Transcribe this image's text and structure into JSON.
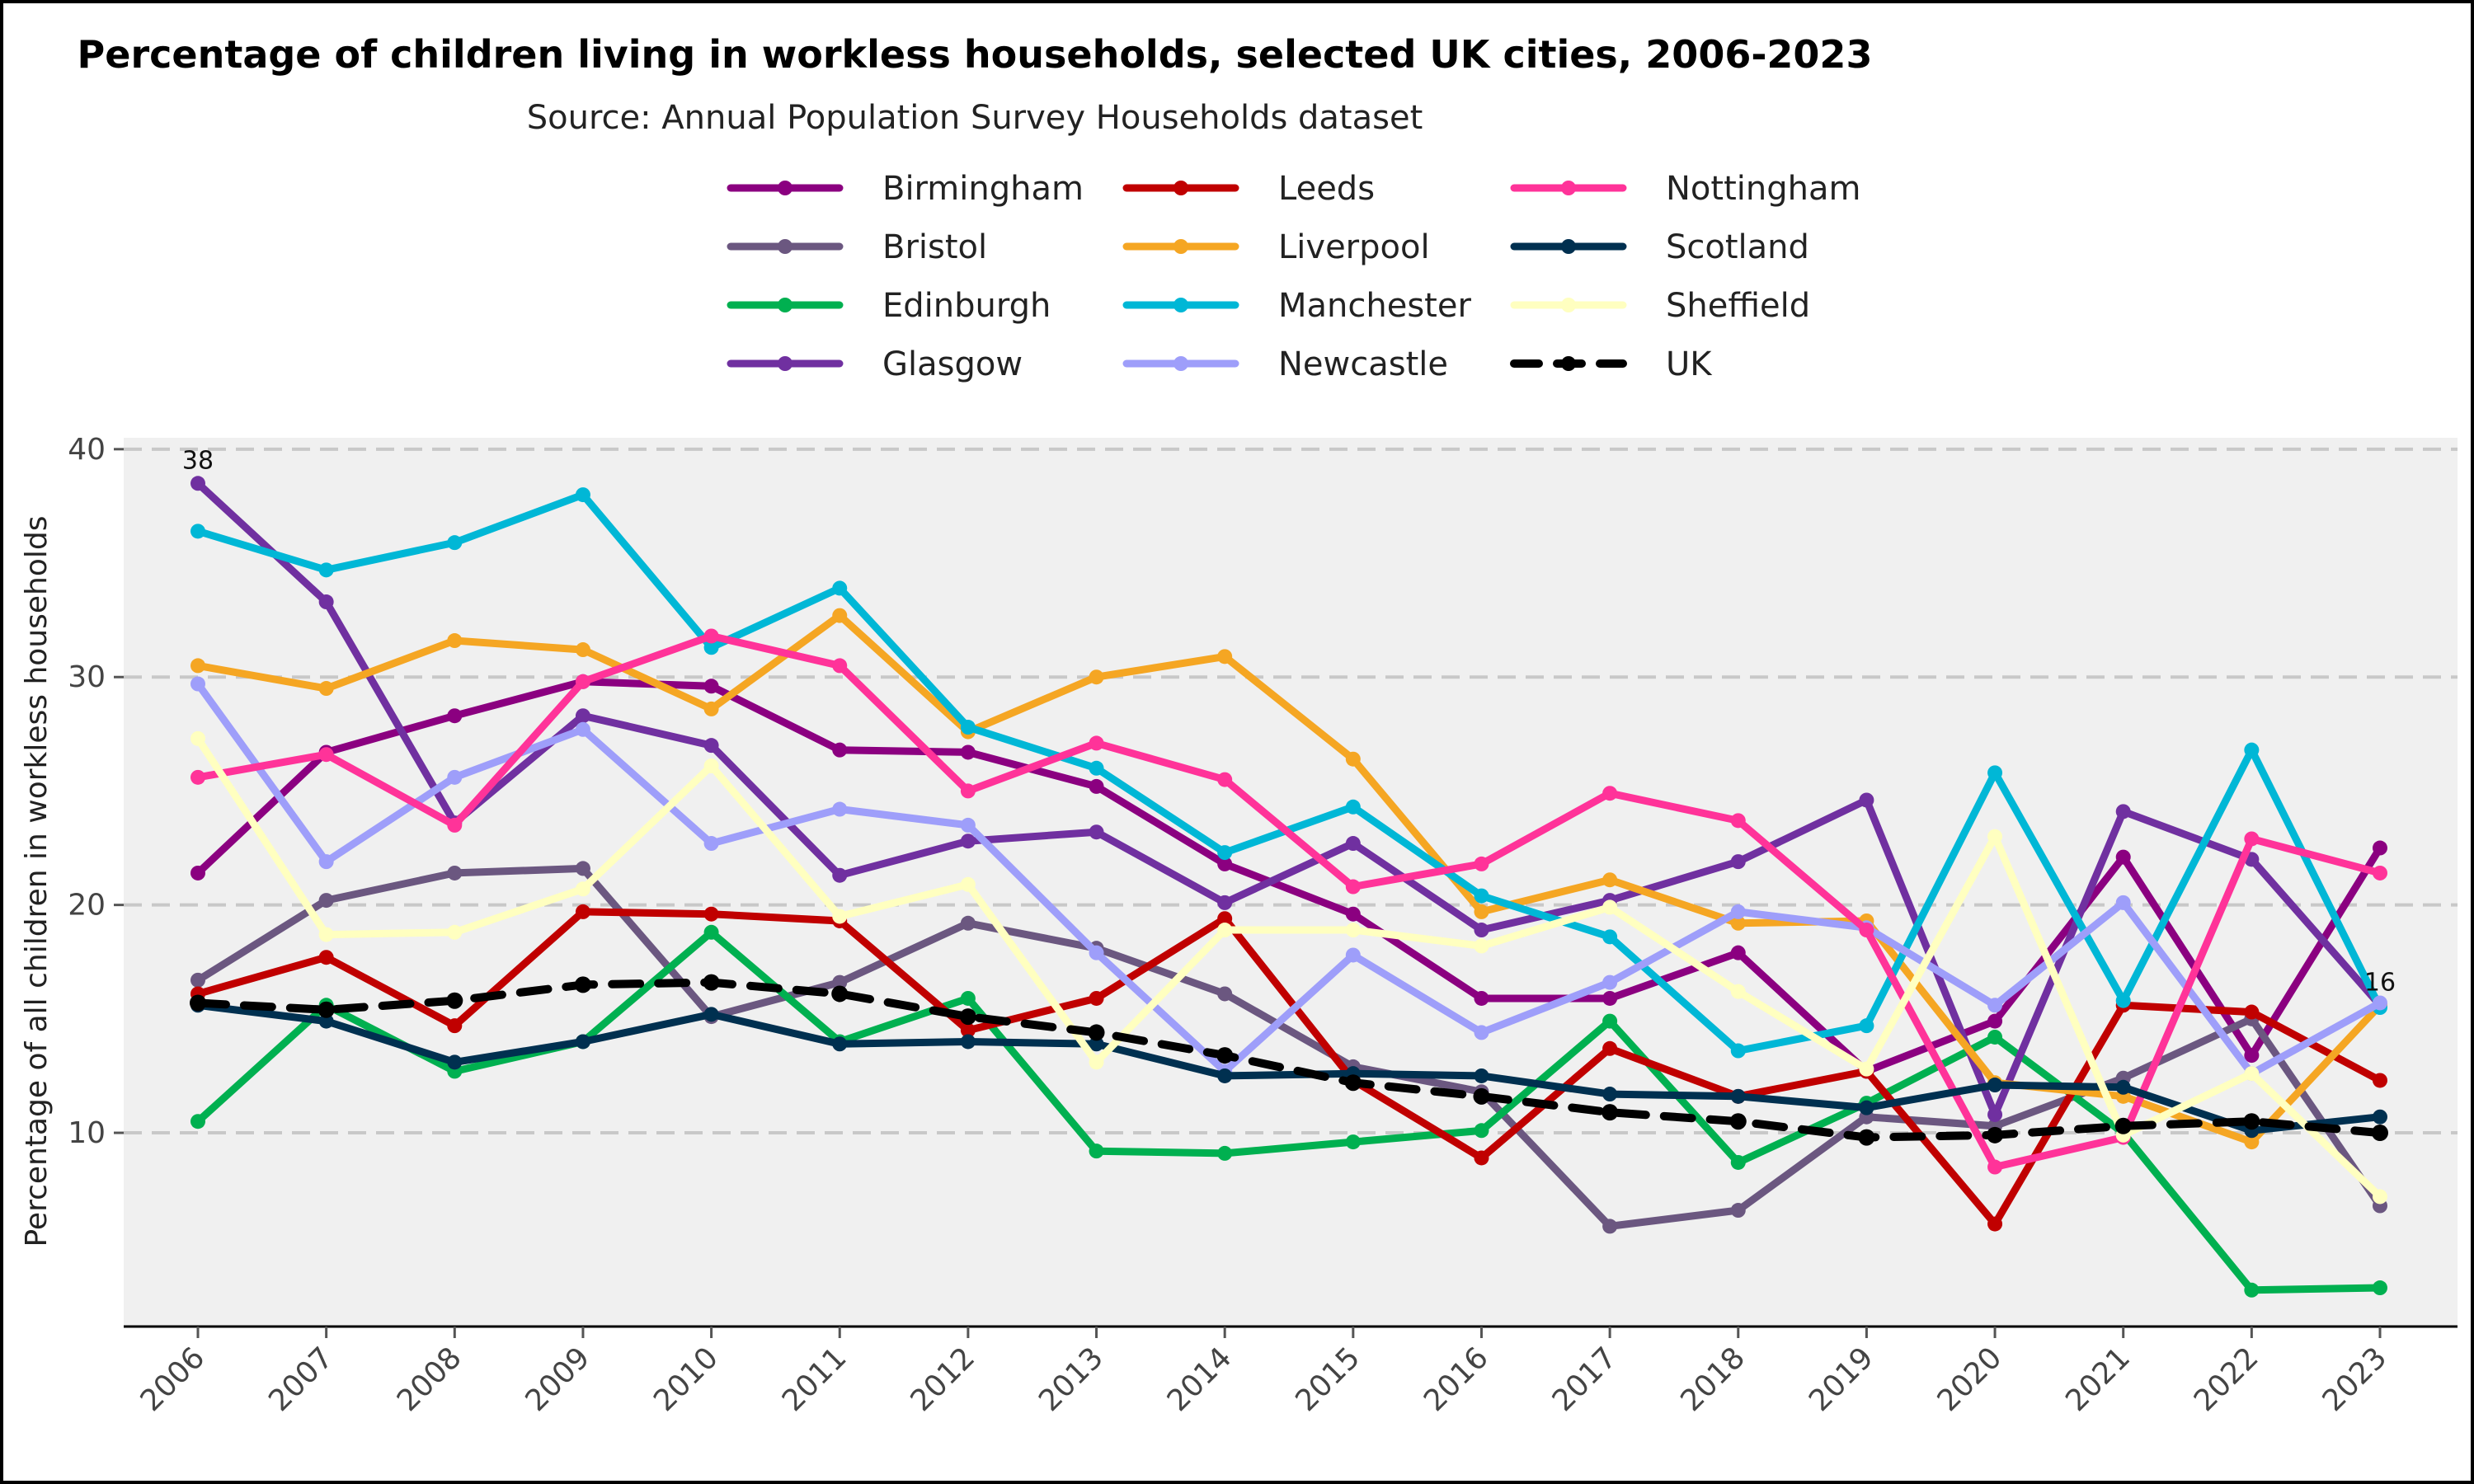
{
  "chart_data": {
    "type": "line",
    "title": "Percentage of children living in workless households, selected UK cities, 2006-2023",
    "subtitle": "Source: Annual Population Survey Households dataset",
    "xlabel": "",
    "ylabel": "Percentage of all children in workless households",
    "x": [
      "2006",
      "2007",
      "2008",
      "2009",
      "2010",
      "2011",
      "2012",
      "2013",
      "2014",
      "2015",
      "2016",
      "2017",
      "2018",
      "2019",
      "2020",
      "2021",
      "2022",
      "2023"
    ],
    "ylim": [
      1.5,
      40.5
    ],
    "yticks": [
      "10",
      "20",
      "30",
      "40"
    ],
    "grid": "horizontal dashed",
    "legend": "top-center, 3 columns",
    "series": [
      {
        "name": "Birmingham",
        "color": "#8B0080",
        "dashed": false,
        "values": [
          21.4,
          26.7,
          28.3,
          29.8,
          29.6,
          26.8,
          26.7,
          25.2,
          21.8,
          19.6,
          15.9,
          15.9,
          17.9,
          12.7,
          14.9,
          22.1,
          13.4,
          22.5
        ]
      },
      {
        "name": "Bristol",
        "color": "#6B5780",
        "dashed": false,
        "values": [
          16.7,
          20.2,
          21.4,
          21.6,
          15.1,
          16.6,
          19.2,
          18.1,
          16.1,
          12.9,
          11.8,
          5.9,
          6.6,
          10.7,
          10.3,
          12.4,
          15.0,
          6.8
        ]
      },
      {
        "name": "Edinburgh",
        "color": "#00B050",
        "dashed": false,
        "values": [
          10.5,
          15.6,
          12.7,
          14.0,
          18.8,
          14.0,
          15.9,
          9.2,
          9.1,
          9.6,
          10.1,
          14.9,
          8.7,
          11.3,
          14.2,
          10.0,
          3.1,
          3.2
        ]
      },
      {
        "name": "Glasgow",
        "color": "#7030A0",
        "dashed": false,
        "values": [
          38.5,
          33.3,
          23.6,
          28.3,
          27.0,
          21.3,
          22.8,
          23.2,
          20.1,
          22.7,
          18.9,
          20.2,
          21.9,
          24.6,
          10.8,
          24.1,
          22.0,
          15.6
        ]
      },
      {
        "name": "Leeds",
        "color": "#C00000",
        "dashed": false,
        "values": [
          16.1,
          17.7,
          14.7,
          19.7,
          19.6,
          19.3,
          14.5,
          15.9,
          19.4,
          12.3,
          8.9,
          13.7,
          11.6,
          12.7,
          6.0,
          15.6,
          15.3,
          12.3
        ]
      },
      {
        "name": "Liverpool",
        "color": "#F5A623",
        "dashed": false,
        "values": [
          30.5,
          29.5,
          31.6,
          31.2,
          28.6,
          32.7,
          27.6,
          30.0,
          30.9,
          26.4,
          19.7,
          21.1,
          19.2,
          19.3,
          12.2,
          11.6,
          9.6,
          15.6
        ]
      },
      {
        "name": "Manchester",
        "color": "#00B7D6",
        "dashed": false,
        "values": [
          36.4,
          34.7,
          35.9,
          38.0,
          31.3,
          33.9,
          27.8,
          26.0,
          22.3,
          24.3,
          20.4,
          18.6,
          13.6,
          14.7,
          25.8,
          15.8,
          26.8,
          15.5
        ]
      },
      {
        "name": "Newcastle",
        "color": "#9E9EFA",
        "dashed": false,
        "values": [
          29.7,
          21.9,
          25.6,
          27.7,
          22.7,
          24.2,
          23.5,
          17.9,
          12.7,
          17.8,
          14.4,
          16.6,
          19.7,
          19.0,
          15.6,
          20.1,
          12.6,
          15.7
        ]
      },
      {
        "name": "Nottingham",
        "color": "#FF3399",
        "dashed": false,
        "values": [
          25.6,
          26.6,
          23.5,
          29.8,
          31.8,
          30.5,
          25.0,
          27.1,
          25.5,
          20.8,
          21.8,
          24.9,
          23.7,
          18.9,
          8.5,
          9.8,
          22.9,
          21.4
        ]
      },
      {
        "name": "Scotland",
        "color": "#003050",
        "dashed": false,
        "values": [
          15.6,
          14.9,
          13.1,
          14.0,
          15.2,
          13.9,
          14.0,
          13.9,
          12.5,
          12.6,
          12.5,
          11.7,
          11.6,
          11.1,
          12.1,
          12.0,
          10.1,
          10.7
        ]
      },
      {
        "name": "Sheffield",
        "color": "#FFFFC0",
        "dashed": false,
        "values": [
          27.3,
          18.7,
          18.8,
          20.7,
          26.1,
          19.5,
          20.9,
          13.1,
          18.9,
          18.9,
          18.2,
          19.9,
          16.2,
          12.8,
          23.0,
          9.9,
          12.6,
          7.2
        ]
      },
      {
        "name": "UK",
        "color": "#000000",
        "dashed": true,
        "values": [
          15.7,
          15.4,
          15.8,
          16.5,
          16.6,
          16.1,
          15.1,
          14.4,
          13.4,
          12.2,
          11.6,
          10.9,
          10.5,
          9.8,
          9.9,
          10.3,
          10.5,
          10.0
        ]
      }
    ],
    "annotations": [
      {
        "text": "38",
        "year": "2006",
        "value": 38.5
      },
      {
        "text": "16",
        "year": "2023",
        "value": 15.6
      }
    ]
  }
}
